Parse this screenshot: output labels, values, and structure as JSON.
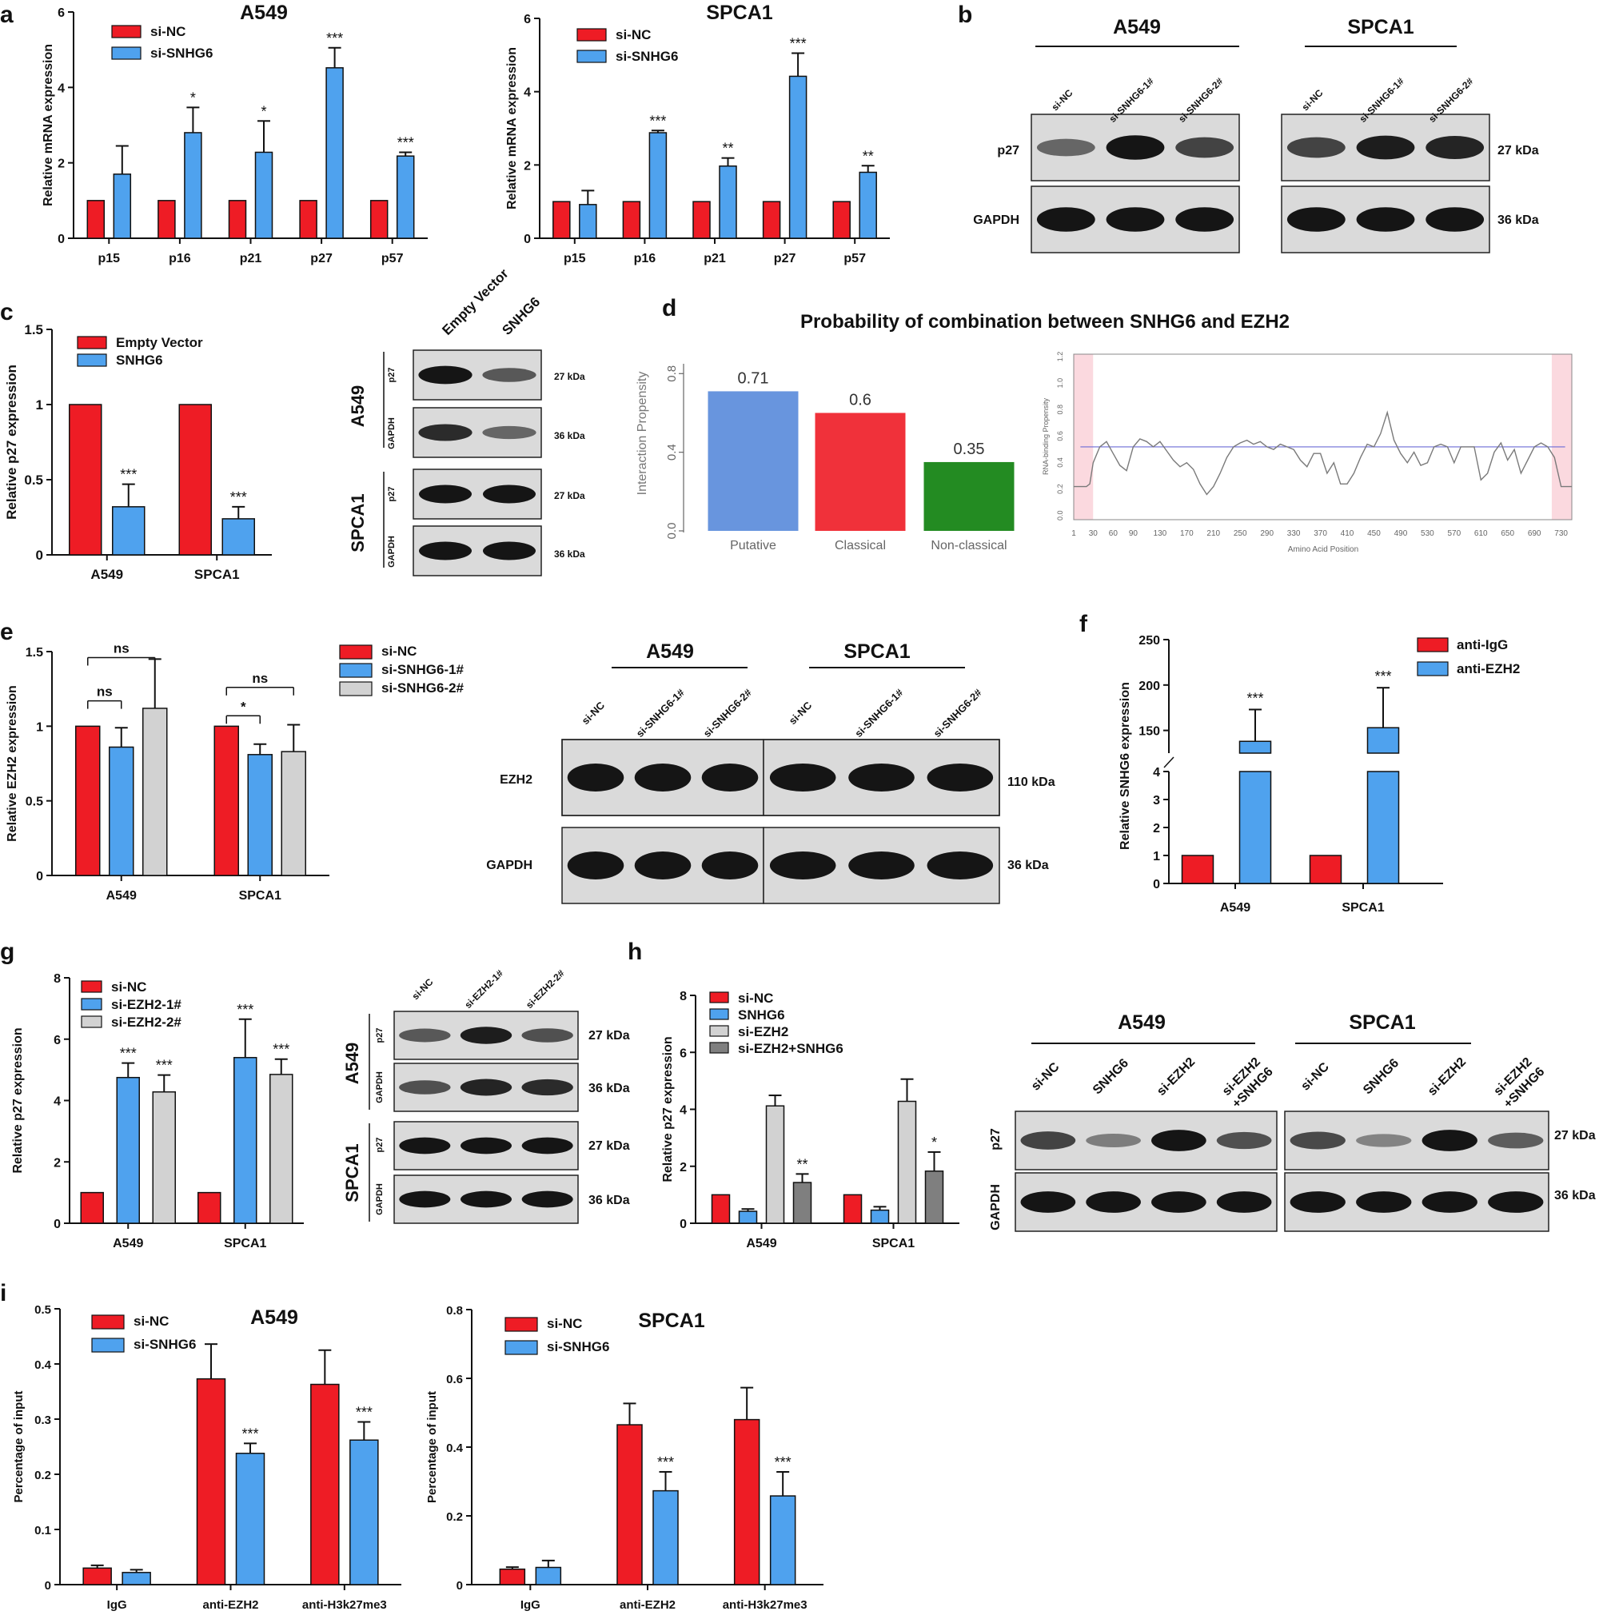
{
  "figure": {
    "panel_letters": [
      "a",
      "b",
      "c",
      "d",
      "e",
      "f",
      "g",
      "h",
      "i"
    ],
    "colors": {
      "red": "#ee1c25",
      "blue": "#4fa2ee",
      "lgray": "#d2d2d2",
      "dgray": "#7f7f7f",
      "blob": "#151515",
      "gel": "#dadada"
    }
  },
  "chart_data": [
    {
      "id": "a1",
      "type": "bar",
      "title": "A549",
      "ylabel": "Relative mRNA expression",
      "ylim": [
        0,
        6
      ],
      "yticks": [
        0,
        2,
        4,
        6
      ],
      "categories": [
        "p15",
        "p16",
        "p21",
        "p27",
        "p57"
      ],
      "series": [
        {
          "name": "si-NC",
          "color": "#ee1c25",
          "values": [
            1,
            1,
            1,
            1,
            1
          ],
          "errors": [
            0,
            0,
            0,
            0,
            0
          ]
        },
        {
          "name": "si-SNHG6",
          "color": "#4fa2ee",
          "values": [
            1.7,
            2.8,
            2.28,
            4.52,
            2.18
          ],
          "errors": [
            0.75,
            0.67,
            0.83,
            0.53,
            0.1
          ]
        }
      ],
      "annotations": [
        {
          "cat": 1,
          "s": 1,
          "text": "*"
        },
        {
          "cat": 2,
          "s": 1,
          "text": "*"
        },
        {
          "cat": 3,
          "s": 1,
          "text": "***"
        },
        {
          "cat": 4,
          "s": 1,
          "text": "***"
        }
      ]
    },
    {
      "id": "a2",
      "type": "bar",
      "title": "SPCA1",
      "ylabel": "Relative mRNA expression",
      "ylim": [
        0,
        6
      ],
      "yticks": [
        0,
        2,
        4,
        6
      ],
      "categories": [
        "p15",
        "p16",
        "p21",
        "p27",
        "p57"
      ],
      "series": [
        {
          "name": "si-NC",
          "color": "#ee1c25",
          "values": [
            1,
            1,
            1,
            1,
            1
          ],
          "errors": [
            0,
            0,
            0,
            0,
            0
          ]
        },
        {
          "name": "si-SNHG6",
          "color": "#4fa2ee",
          "values": [
            0.92,
            2.88,
            1.97,
            4.42,
            1.8
          ],
          "errors": [
            0.38,
            0.06,
            0.22,
            0.63,
            0.18
          ]
        }
      ],
      "annotations": [
        {
          "cat": 1,
          "s": 1,
          "text": "***"
        },
        {
          "cat": 2,
          "s": 1,
          "text": "**"
        },
        {
          "cat": 3,
          "s": 1,
          "text": "***"
        },
        {
          "cat": 4,
          "s": 1,
          "text": "**"
        }
      ]
    },
    {
      "id": "c",
      "type": "bar",
      "title": "",
      "ylabel": "Relative p27 expression",
      "ylim": [
        0,
        1.5
      ],
      "yticks": [
        0,
        0.5,
        1.0,
        1.5
      ],
      "categories": [
        "A549",
        "SPCA1"
      ],
      "series": [
        {
          "name": "Empty Vector",
          "color": "#ee1c25",
          "values": [
            1,
            1
          ],
          "errors": [
            0,
            0
          ]
        },
        {
          "name": "SNHG6",
          "color": "#4fa2ee",
          "values": [
            0.32,
            0.24
          ],
          "errors": [
            0.15,
            0.08
          ]
        }
      ],
      "annotations": [
        {
          "cat": 0,
          "s": 1,
          "text": "***"
        },
        {
          "cat": 1,
          "s": 1,
          "text": "***"
        }
      ]
    },
    {
      "id": "d1",
      "type": "bar",
      "title": "Probability of combination between SNHG6 and EZH2",
      "ylabel": "Interaction Propensity",
      "ylim": [
        0,
        0.85
      ],
      "yticks": [
        0.0,
        0.4,
        0.8
      ],
      "categories": [
        "Putative",
        "Classical",
        "Non-classical"
      ],
      "values": [
        0.71,
        0.6,
        0.35
      ],
      "value_labels": [
        "0.71",
        "0.6",
        "0.35"
      ],
      "colors": [
        "#6895de",
        "#f0313a",
        "#238b22"
      ]
    },
    {
      "id": "d2",
      "type": "line",
      "ylabel": "RNA-binding Propensity",
      "xlabel": "Amino Acid Position",
      "ylim": [
        -0.05,
        1.2
      ],
      "xlim": [
        1,
        746
      ],
      "yticks": [
        0.0,
        0.2,
        0.4,
        0.6,
        0.8,
        1.0,
        1.2
      ],
      "xticks": [
        1,
        30,
        60,
        90,
        130,
        170,
        210,
        250,
        290,
        330,
        370,
        410,
        450,
        490,
        530,
        570,
        610,
        650,
        690,
        730
      ],
      "threshold": 0.5,
      "highlights": [
        [
          1,
          30
        ],
        [
          716,
          746
        ]
      ],
      "x": [
        1,
        20,
        25,
        30,
        40,
        50,
        60,
        70,
        80,
        90,
        100,
        110,
        120,
        130,
        140,
        150,
        160,
        170,
        180,
        190,
        200,
        210,
        220,
        230,
        240,
        250,
        260,
        270,
        280,
        290,
        300,
        310,
        320,
        330,
        340,
        350,
        360,
        370,
        380,
        390,
        400,
        410,
        420,
        430,
        440,
        450,
        460,
        470,
        480,
        490,
        500,
        510,
        520,
        530,
        540,
        550,
        560,
        570,
        580,
        590,
        600,
        610,
        620,
        630,
        640,
        650,
        660,
        670,
        680,
        690,
        700,
        710,
        720,
        730,
        746
      ],
      "y": [
        0.2,
        0.2,
        0.22,
        0.38,
        0.5,
        0.54,
        0.45,
        0.36,
        0.32,
        0.5,
        0.56,
        0.54,
        0.5,
        0.54,
        0.47,
        0.4,
        0.35,
        0.38,
        0.33,
        0.22,
        0.14,
        0.2,
        0.3,
        0.42,
        0.5,
        0.53,
        0.55,
        0.52,
        0.54,
        0.5,
        0.48,
        0.52,
        0.5,
        0.48,
        0.4,
        0.35,
        0.45,
        0.45,
        0.3,
        0.38,
        0.22,
        0.22,
        0.3,
        0.42,
        0.52,
        0.5,
        0.6,
        0.76,
        0.55,
        0.45,
        0.38,
        0.46,
        0.36,
        0.38,
        0.5,
        0.52,
        0.5,
        0.38,
        0.5,
        0.5,
        0.5,
        0.25,
        0.3,
        0.46,
        0.53,
        0.4,
        0.48,
        0.3,
        0.4,
        0.5,
        0.53,
        0.5,
        0.42,
        0.2,
        0.2
      ]
    },
    {
      "id": "e",
      "type": "bar",
      "title": "",
      "ylabel": "Relative EZH2 expression",
      "ylim": [
        0,
        1.5
      ],
      "yticks": [
        0,
        0.5,
        1.0,
        1.5
      ],
      "categories": [
        "A549",
        "SPCA1"
      ],
      "series": [
        {
          "name": "si-NC",
          "color": "#ee1c25",
          "values": [
            1,
            1
          ],
          "errors": [
            0,
            0
          ]
        },
        {
          "name": "si-SNHG6-1#",
          "color": "#4fa2ee",
          "values": [
            0.86,
            0.81
          ],
          "errors": [
            0.13,
            0.07
          ]
        },
        {
          "name": "si-SNHG6-2#",
          "color": "#d2d2d2",
          "values": [
            1.12,
            0.83
          ],
          "errors": [
            0.33,
            0.18
          ]
        }
      ],
      "annotations": [],
      "brackets": [
        {
          "cat": 0,
          "s1": 0,
          "s2": 1,
          "text": "ns",
          "y": 1.17
        },
        {
          "cat": 0,
          "s1": 0,
          "s2": 2,
          "text": "ns",
          "y": 1.46
        },
        {
          "cat": 1,
          "s1": 0,
          "s2": 1,
          "text": "*",
          "y": 1.07
        },
        {
          "cat": 1,
          "s1": 0,
          "s2": 2,
          "text": "ns",
          "y": 1.26
        }
      ]
    },
    {
      "id": "f",
      "type": "bar",
      "title": "",
      "ylabel": "Relative SNHG6 expression",
      "axis_break": true,
      "yticks": [
        0,
        1,
        2,
        3,
        4,
        150,
        200,
        250
      ],
      "categories": [
        "A549",
        "SPCA1"
      ],
      "series": [
        {
          "name": "anti-IgG",
          "color": "#ee1c25",
          "values": [
            1,
            1
          ],
          "errors": [
            0,
            0
          ]
        },
        {
          "name": "anti-EZH2",
          "color": "#4fa2ee",
          "values": [
            138,
            153
          ],
          "errors": [
            35,
            44
          ]
        }
      ],
      "annotations": [
        {
          "cat": 0,
          "s": 1,
          "text": "***"
        },
        {
          "cat": 1,
          "s": 1,
          "text": "***"
        }
      ]
    },
    {
      "id": "g",
      "type": "bar",
      "title": "",
      "ylabel": "Relative p27 expression",
      "ylim": [
        0,
        8
      ],
      "yticks": [
        0,
        2,
        4,
        6,
        8
      ],
      "categories": [
        "A549",
        "SPCA1"
      ],
      "series": [
        {
          "name": "si-NC",
          "color": "#ee1c25",
          "values": [
            1,
            1
          ],
          "errors": [
            0,
            0
          ]
        },
        {
          "name": "si-EZH2-1#",
          "color": "#4fa2ee",
          "values": [
            4.75,
            5.4
          ],
          "errors": [
            0.47,
            1.25
          ]
        },
        {
          "name": "si-EZH2-2#",
          "color": "#d2d2d2",
          "values": [
            4.28,
            4.85
          ],
          "errors": [
            0.55,
            0.5
          ]
        }
      ],
      "annotations": [
        {
          "cat": 0,
          "s": 1,
          "text": "***"
        },
        {
          "cat": 0,
          "s": 2,
          "text": "***"
        },
        {
          "cat": 1,
          "s": 1,
          "text": "***"
        },
        {
          "cat": 1,
          "s": 2,
          "text": "***"
        }
      ]
    },
    {
      "id": "h",
      "type": "bar",
      "title": "",
      "ylabel": "Relative p27 expression",
      "ylim": [
        0,
        8
      ],
      "yticks": [
        0,
        2,
        4,
        6,
        8
      ],
      "categories": [
        "A549",
        "SPCA1"
      ],
      "series": [
        {
          "name": "si-NC",
          "color": "#ee1c25",
          "values": [
            1,
            1
          ],
          "errors": [
            0,
            0
          ]
        },
        {
          "name": "SNHG6",
          "color": "#4fa2ee",
          "values": [
            0.42,
            0.46
          ],
          "errors": [
            0.08,
            0.12
          ]
        },
        {
          "name": "si-EZH2",
          "color": "#d2d2d2",
          "values": [
            4.12,
            4.28
          ],
          "errors": [
            0.37,
            0.78
          ]
        },
        {
          "name": "si-EZH2+SNHG6",
          "color": "#7f7f7f",
          "values": [
            1.43,
            1.83
          ],
          "errors": [
            0.3,
            0.67
          ]
        }
      ],
      "annotations": [
        {
          "cat": 0,
          "s": 3,
          "text": "**"
        },
        {
          "cat": 1,
          "s": 3,
          "text": "*"
        }
      ]
    },
    {
      "id": "i1",
      "type": "bar",
      "title": "A549",
      "ylabel": "Percentage of input",
      "ylim": [
        0,
        0.5
      ],
      "yticks": [
        0,
        0.1,
        0.2,
        0.3,
        0.4,
        0.5
      ],
      "categories": [
        "IgG",
        "anti-EZH2",
        "anti-H3k27me3"
      ],
      "series": [
        {
          "name": "si-NC",
          "color": "#ee1c25",
          "values": [
            0.03,
            0.373,
            0.363
          ],
          "errors": [
            0.005,
            0.063,
            0.062
          ]
        },
        {
          "name": "si-SNHG6",
          "color": "#4fa2ee",
          "values": [
            0.022,
            0.238,
            0.262
          ],
          "errors": [
            0.005,
            0.018,
            0.033
          ]
        }
      ],
      "annotations": [
        {
          "cat": 1,
          "s": 1,
          "text": "***"
        },
        {
          "cat": 2,
          "s": 1,
          "text": "***"
        }
      ]
    },
    {
      "id": "i2",
      "type": "bar",
      "title": "SPCA1",
      "ylabel": "Percentage of input",
      "ylim": [
        0,
        0.8
      ],
      "yticks": [
        0,
        0.2,
        0.4,
        0.6,
        0.8
      ],
      "categories": [
        "IgG",
        "anti-EZH2",
        "anti-H3k27me3"
      ],
      "series": [
        {
          "name": "si-NC",
          "color": "#ee1c25",
          "values": [
            0.045,
            0.465,
            0.48
          ],
          "errors": [
            0.006,
            0.062,
            0.093
          ]
        },
        {
          "name": "si-SNHG6",
          "color": "#4fa2ee",
          "values": [
            0.05,
            0.273,
            0.258
          ],
          "errors": [
            0.02,
            0.055,
            0.07
          ]
        }
      ],
      "annotations": [
        {
          "cat": 1,
          "s": 1,
          "text": "***"
        },
        {
          "cat": 2,
          "s": 1,
          "text": "***"
        }
      ]
    }
  ],
  "blots": [
    {
      "id": "b",
      "groups": [
        "A549",
        "SPCA1"
      ],
      "lanes": [
        "si-NC",
        "si-SNHG6-1#",
        "si-SNHG6-2#"
      ],
      "rows": [
        "p27",
        "GAPDH"
      ],
      "sizes": [
        "27 kDa",
        "36 kDa"
      ],
      "intensities": [
        [
          [
            0.45,
            1.0,
            0.7
          ],
          [
            0.7,
            0.95,
            0.9
          ]
        ],
        [
          [
            1,
            1,
            1
          ],
          [
            1,
            1,
            1
          ]
        ]
      ]
    },
    {
      "id": "c_blot",
      "groups": [
        "A549",
        "SPCA1"
      ],
      "lanes": [
        "Empty Vector",
        "SNHG6"
      ],
      "rows": [
        "p27",
        "GAPDH"
      ],
      "sizes": [
        "27 kDa",
        "36 kDa"
      ],
      "intensities": [
        [
          [
            1.0,
            0.55
          ],
          [
            1,
            1
          ]
        ],
        [
          [
            0.85,
            0.45
          ],
          [
            1,
            1
          ]
        ]
      ]
    },
    {
      "id": "e_blot",
      "groups": [
        "A549",
        "SPCA1"
      ],
      "lanes": [
        "si-NC",
        "si-SNHG6-1#",
        "si-SNHG6-2#"
      ],
      "rows": [
        "EZH2",
        "GAPDH"
      ],
      "sizes": [
        "110 kDa",
        "36 kDa"
      ],
      "intensities": [
        [
          [
            1,
            1,
            1
          ],
          [
            1,
            1,
            1
          ]
        ],
        [
          [
            1,
            1,
            1
          ],
          [
            1,
            1,
            1
          ]
        ]
      ]
    },
    {
      "id": "g_blot",
      "groups": [
        "A549",
        "SPCA1"
      ],
      "lanes": [
        "si-NC",
        "si-EZH2-1#",
        "si-EZH2-2#"
      ],
      "rows": [
        "p27",
        "GAPDH"
      ],
      "sizes": [
        "27 kDa",
        "36 kDa"
      ],
      "intensities": [
        [
          [
            0.55,
            0.95,
            0.6
          ],
          [
            1,
            1,
            1
          ]
        ],
        [
          [
            0.6,
            0.9,
            0.85
          ],
          [
            1,
            1,
            1
          ]
        ]
      ]
    },
    {
      "id": "h_blot",
      "groups": [
        "A549",
        "SPCA1"
      ],
      "lanes": [
        "si-NC",
        "SNHG6",
        "si-EZH2",
        "si-EZH2\n+SNHG6"
      ],
      "rows": [
        "p27",
        "GAPDH"
      ],
      "sizes": [
        "27 kDa",
        "36 kDa"
      ],
      "intensities": [
        [
          [
            0.7,
            0.3,
            1.0,
            0.6
          ],
          [
            0.65,
            0.25,
            1.0,
            0.5
          ]
        ],
        [
          [
            1,
            1,
            1,
            1
          ],
          [
            1,
            1,
            1,
            1
          ]
        ]
      ]
    }
  ]
}
